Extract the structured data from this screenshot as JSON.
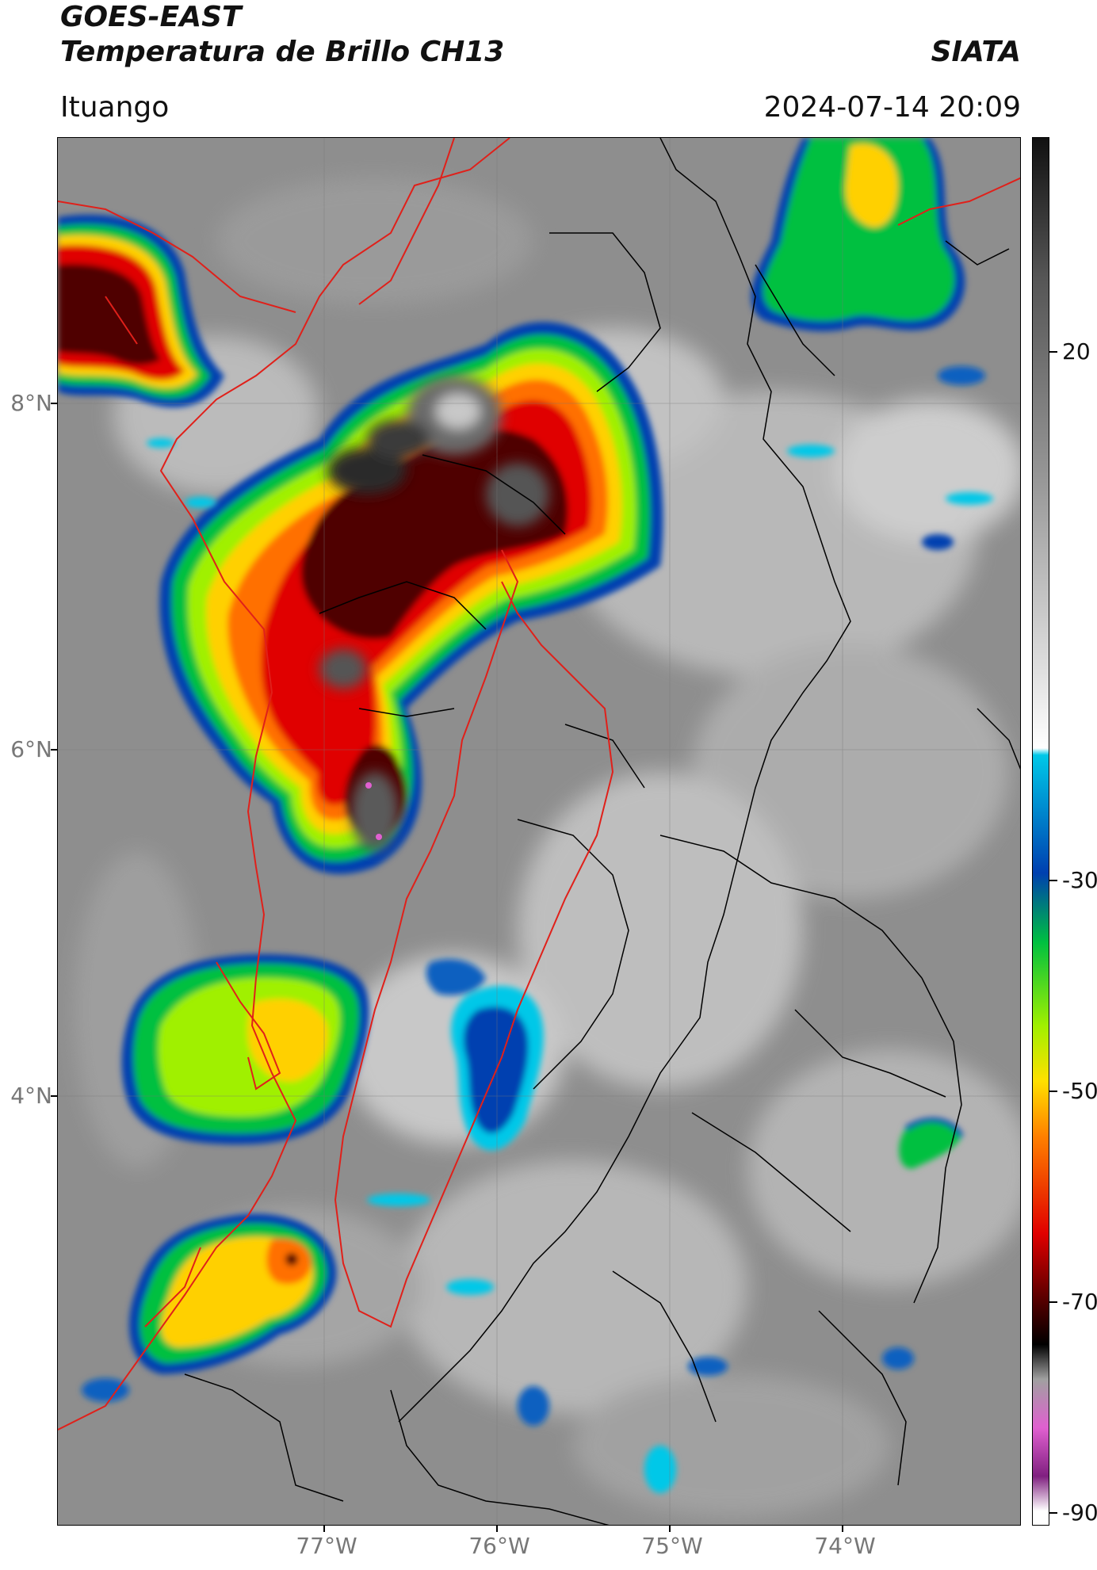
{
  "header": {
    "satellite": "GOES-EAST",
    "product": "Temperatura de Brillo CH13",
    "organization": "SIATA",
    "region": "Ituango",
    "datetime": "2024-07-14 20:09"
  },
  "map": {
    "lat_labels": [
      "8°N",
      "6°N",
      "4°N"
    ],
    "lon_labels": [
      "77°W",
      "76°W",
      "75°W",
      "74°W"
    ],
    "border_colors": {
      "country": "#e0201a",
      "department": "#000000"
    }
  },
  "colorbar": {
    "tick_labels": [
      "20",
      "-30",
      "-50",
      "-70",
      "-90"
    ],
    "colors": [
      "#111111",
      "#555555",
      "#999999",
      "#dddddd",
      "#ffffff",
      "#00c8e8",
      "#0040b0",
      "#00c040",
      "#a0f000",
      "#ffe000",
      "#ff8000",
      "#e00000",
      "#500000",
      "#000000",
      "#a0a0a0",
      "#e060d0",
      "#802080",
      "#ffffff"
    ]
  }
}
